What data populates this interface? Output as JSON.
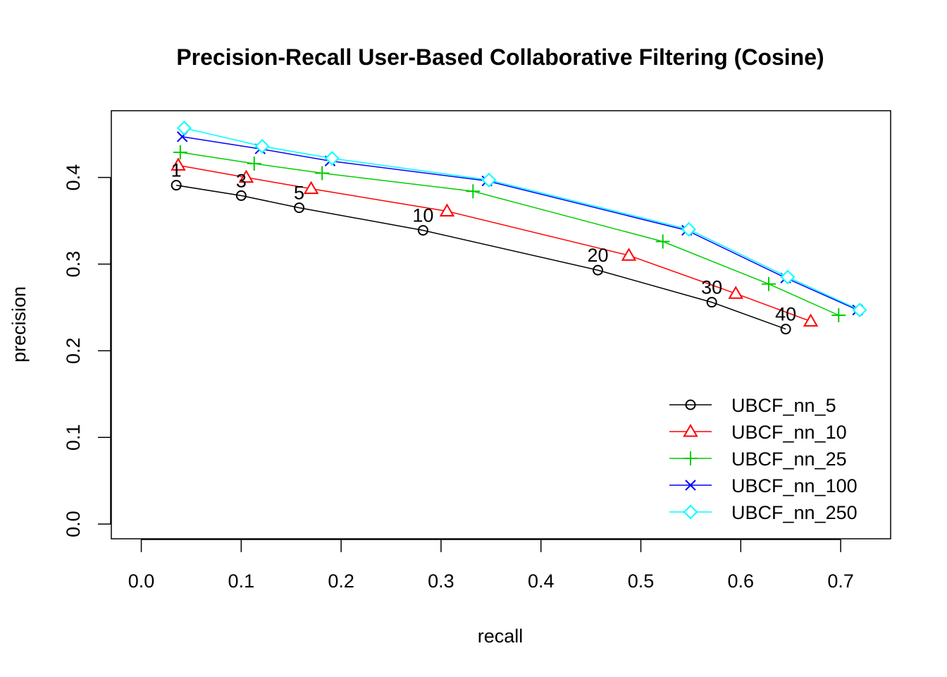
{
  "chart_data": {
    "type": "line",
    "title": "Precision-Recall User-Based Collaborative Filtering (Cosine)",
    "xlabel": "recall",
    "ylabel": "precision",
    "xlim": [
      -0.03,
      0.75
    ],
    "ylim": [
      -0.017,
      0.477
    ],
    "x_ticks": [
      "0.0",
      "0.1",
      "0.2",
      "0.3",
      "0.4",
      "0.5",
      "0.6",
      "0.7"
    ],
    "y_ticks": [
      "0.0",
      "0.1",
      "0.2",
      "0.3",
      "0.4"
    ],
    "grid": false,
    "legend_position": "bottom-right",
    "series": [
      {
        "name": "UBCF_nn_5",
        "color": "#000000",
        "marker": "circle",
        "x": [
          0.035,
          0.1,
          0.158,
          0.282,
          0.457,
          0.571,
          0.645
        ],
        "y": [
          0.391,
          0.379,
          0.365,
          0.339,
          0.293,
          0.256,
          0.225
        ]
      },
      {
        "name": "UBCF_nn_10",
        "color": "#ff0000",
        "marker": "triangle",
        "x": [
          0.037,
          0.105,
          0.17,
          0.306,
          0.488,
          0.595,
          0.67
        ],
        "y": [
          0.414,
          0.4,
          0.387,
          0.361,
          0.31,
          0.266,
          0.234
        ]
      },
      {
        "name": "UBCF_nn_25",
        "color": "#00cd00",
        "marker": "plus",
        "x": [
          0.039,
          0.113,
          0.181,
          0.332,
          0.522,
          0.628,
          0.698
        ],
        "y": [
          0.429,
          0.416,
          0.405,
          0.384,
          0.326,
          0.277,
          0.241
        ]
      },
      {
        "name": "UBCF_nn_100",
        "color": "#0000ff",
        "marker": "x",
        "x": [
          0.041,
          0.119,
          0.189,
          0.346,
          0.546,
          0.645,
          0.717
        ],
        "y": [
          0.447,
          0.433,
          0.419,
          0.396,
          0.339,
          0.284,
          0.247
        ]
      },
      {
        "name": "UBCF_nn_250",
        "color": "#00ffff",
        "marker": "diamond",
        "x": [
          0.043,
          0.121,
          0.191,
          0.348,
          0.548,
          0.647,
          0.719
        ],
        "y": [
          0.457,
          0.436,
          0.422,
          0.397,
          0.34,
          0.285,
          0.247
        ]
      }
    ],
    "annotations": [
      {
        "text": "1",
        "x": 0.035,
        "y": 0.391
      },
      {
        "text": "3",
        "x": 0.1,
        "y": 0.379
      },
      {
        "text": "5",
        "x": 0.158,
        "y": 0.365
      },
      {
        "text": "10",
        "x": 0.282,
        "y": 0.339
      },
      {
        "text": "20",
        "x": 0.457,
        "y": 0.293
      },
      {
        "text": "30",
        "x": 0.571,
        "y": 0.256
      },
      {
        "text": "40",
        "x": 0.645,
        "y": 0.225
      }
    ]
  }
}
